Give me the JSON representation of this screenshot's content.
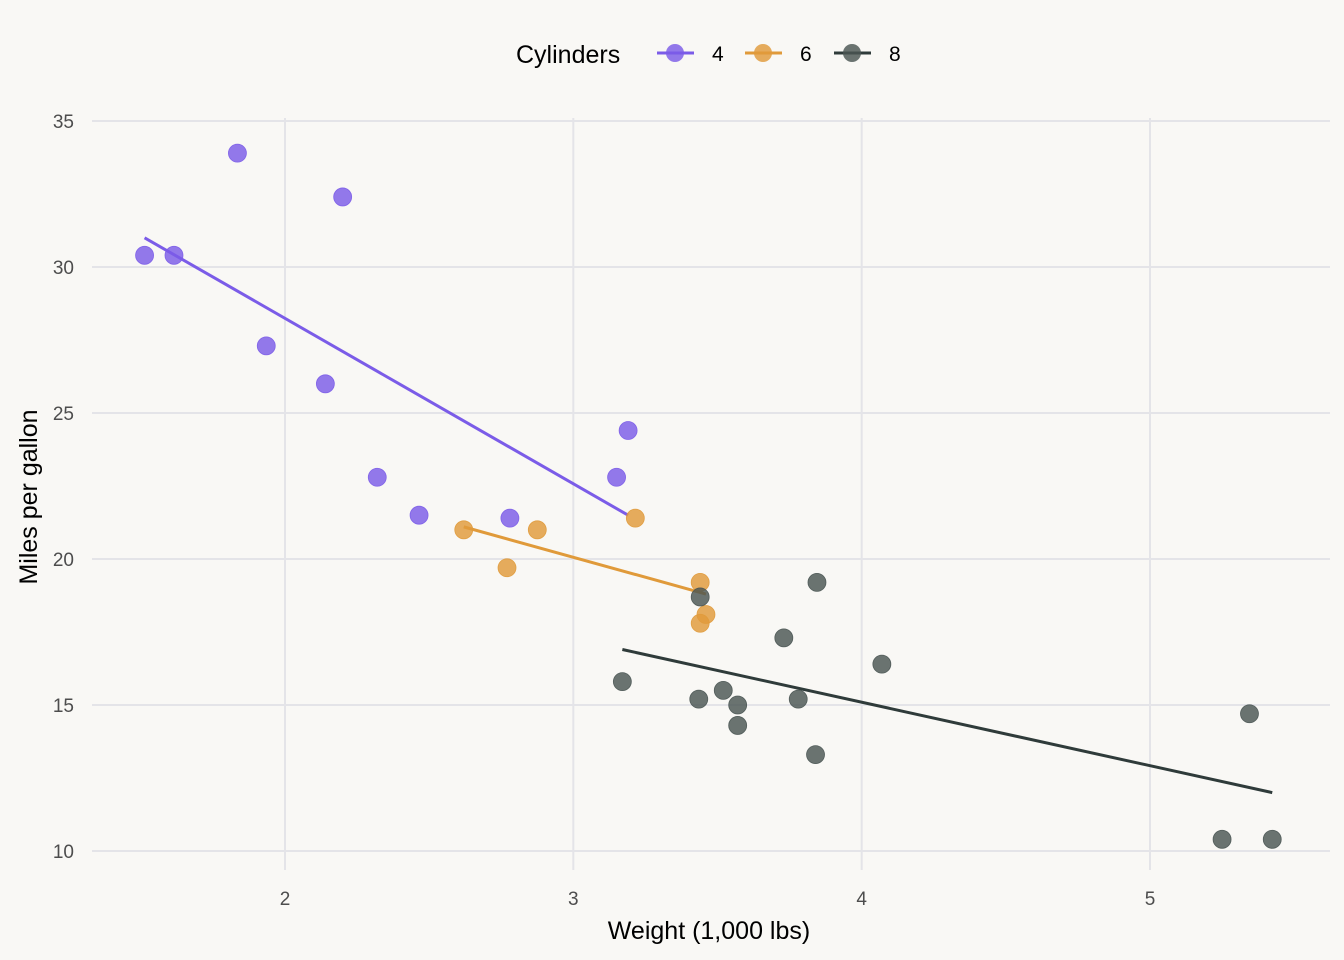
{
  "chart_data": {
    "type": "scatter",
    "title": "",
    "xlabel": "Weight (1,000 lbs)",
    "ylabel": "Miles per gallon",
    "xlim": [
      1.3,
      5.6
    ],
    "ylim": [
      9.5,
      35.5
    ],
    "xticks": [
      2,
      3,
      4,
      5
    ],
    "yticks": [
      10,
      15,
      20,
      25,
      30,
      35
    ],
    "grid": true,
    "legend": {
      "title": "Cylinders",
      "placement": "top"
    },
    "series": [
      {
        "name": "4",
        "color": "#7b5ce8",
        "points": [
          [
            2.32,
            22.8
          ],
          [
            3.19,
            24.4
          ],
          [
            3.15,
            22.8
          ],
          [
            2.2,
            32.4
          ],
          [
            1.615,
            30.4
          ],
          [
            1.835,
            33.9
          ],
          [
            2.465,
            21.5
          ],
          [
            1.935,
            27.3
          ],
          [
            2.14,
            26.0
          ],
          [
            1.513,
            30.4
          ],
          [
            2.78,
            21.4
          ]
        ],
        "trend": [
          [
            1.513,
            31.0
          ],
          [
            3.19,
            21.5
          ]
        ]
      },
      {
        "name": "6",
        "color": "#e09a3a",
        "points": [
          [
            2.62,
            21.0
          ],
          [
            2.875,
            21.0
          ],
          [
            3.215,
            21.4
          ],
          [
            3.46,
            18.1
          ],
          [
            3.44,
            19.2
          ],
          [
            3.44,
            17.8
          ],
          [
            2.77,
            19.7
          ]
        ],
        "trend": [
          [
            2.62,
            21.1
          ],
          [
            3.46,
            18.8
          ]
        ]
      },
      {
        "name": "8",
        "color": "#2f3b3a",
        "point_color": "#4a5553",
        "points": [
          [
            3.44,
            18.7
          ],
          [
            3.57,
            14.3
          ],
          [
            4.07,
            16.4
          ],
          [
            3.73,
            17.3
          ],
          [
            3.78,
            15.2
          ],
          [
            5.25,
            10.4
          ],
          [
            5.424,
            10.4
          ],
          [
            5.345,
            14.7
          ],
          [
            3.52,
            15.5
          ],
          [
            3.435,
            15.2
          ],
          [
            3.84,
            13.3
          ],
          [
            3.845,
            19.2
          ],
          [
            3.17,
            15.8
          ],
          [
            3.57,
            15.0
          ]
        ],
        "trend": [
          [
            3.17,
            16.9
          ],
          [
            5.424,
            12.0
          ]
        ]
      }
    ]
  }
}
